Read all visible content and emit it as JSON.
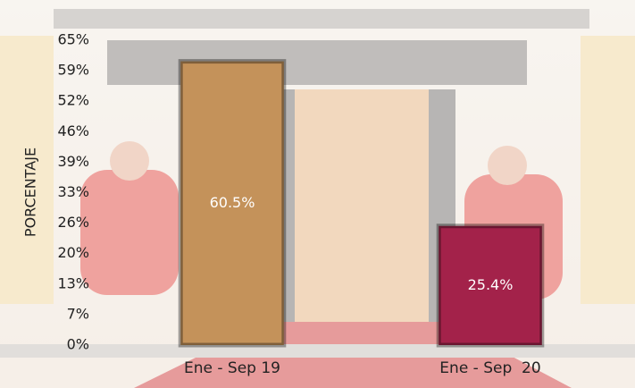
{
  "chart_data": {
    "type": "bar",
    "y_label": "PORCENTAJE",
    "categories": [
      "Ene - Sep 19",
      "Ene - Sep  20"
    ],
    "values": [
      60.5,
      25.4
    ],
    "value_labels": [
      "60.5%",
      "25.4%"
    ],
    "colors": [
      "#c4925a",
      "#a3224a"
    ],
    "ylim": [
      0,
      65
    ],
    "yticks": [
      {
        "value": 0,
        "label": "0%"
      },
      {
        "value": 6.5,
        "label": "7%"
      },
      {
        "value": 13,
        "label": "13%"
      },
      {
        "value": 19.5,
        "label": "20%"
      },
      {
        "value": 26,
        "label": "26%"
      },
      {
        "value": 32.5,
        "label": "33%"
      },
      {
        "value": 39,
        "label": "39%"
      },
      {
        "value": 45.5,
        "label": "46%"
      },
      {
        "value": 52,
        "label": "52%"
      },
      {
        "value": 58.5,
        "label": "59%"
      },
      {
        "value": 65,
        "label": "65%"
      }
    ],
    "grid": false
  }
}
